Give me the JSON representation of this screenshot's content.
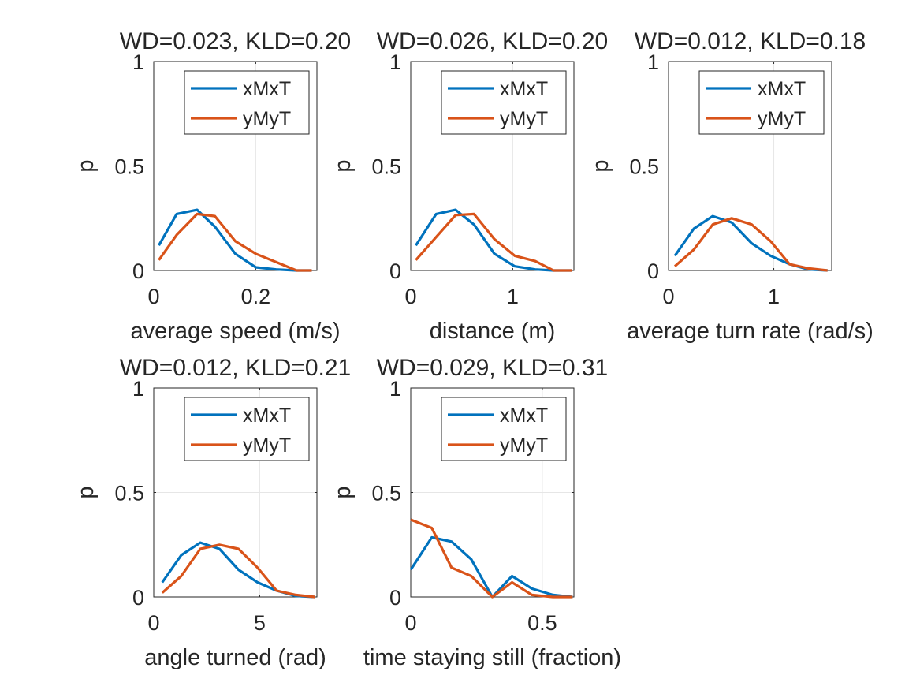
{
  "figure": {
    "background": "#ffffff",
    "series_colors": {
      "xMxT": "#0072BD",
      "yMyT": "#D95319"
    }
  },
  "chart_data": [
    {
      "type": "line",
      "title": "WD=0.023, KLD=0.20",
      "xlabel": "average speed (m/s)",
      "ylabel": "p",
      "xlim": [
        0,
        0.32
      ],
      "ylim": [
        0,
        1
      ],
      "xticks": [
        0,
        0.2
      ],
      "xtick_labels": [
        "0",
        "0.2"
      ],
      "yticks": [
        0,
        0.5,
        1
      ],
      "ytick_labels": [
        "0",
        "0.5",
        "1"
      ],
      "grid": true,
      "legend_position": "top-right",
      "series": [
        {
          "name": "xMxT",
          "color": "#0072BD",
          "x": [
            0.01,
            0.045,
            0.085,
            0.12,
            0.16,
            0.2,
            0.24,
            0.28,
            0.31
          ],
          "y": [
            0.12,
            0.27,
            0.29,
            0.21,
            0.08,
            0.015,
            0.005,
            0.0,
            0.0
          ]
        },
        {
          "name": "yMyT",
          "color": "#D95319",
          "x": [
            0.01,
            0.045,
            0.085,
            0.12,
            0.16,
            0.2,
            0.24,
            0.28,
            0.31
          ],
          "y": [
            0.05,
            0.17,
            0.27,
            0.26,
            0.14,
            0.08,
            0.04,
            0.0,
            0.0
          ]
        }
      ]
    },
    {
      "type": "line",
      "title": "WD=0.026, KLD=0.20",
      "xlabel": "distance (m)",
      "ylabel": "p",
      "xlim": [
        0,
        1.6
      ],
      "ylim": [
        0,
        1
      ],
      "xticks": [
        0,
        1
      ],
      "xtick_labels": [
        "0",
        "1"
      ],
      "yticks": [
        0,
        0.5,
        1
      ],
      "ytick_labels": [
        "0",
        "0.5",
        "1"
      ],
      "grid": true,
      "legend_position": "top-right",
      "series": [
        {
          "name": "xMxT",
          "color": "#0072BD",
          "x": [
            0.05,
            0.25,
            0.44,
            0.62,
            0.82,
            1.02,
            1.22,
            1.4,
            1.58
          ],
          "y": [
            0.12,
            0.27,
            0.29,
            0.22,
            0.08,
            0.02,
            0.005,
            0.0,
            0.0
          ]
        },
        {
          "name": "yMyT",
          "color": "#D95319",
          "x": [
            0.05,
            0.25,
            0.44,
            0.62,
            0.82,
            1.02,
            1.22,
            1.4,
            1.58
          ],
          "y": [
            0.05,
            0.16,
            0.265,
            0.27,
            0.15,
            0.07,
            0.045,
            0.0,
            0.0
          ]
        }
      ]
    },
    {
      "type": "line",
      "title": "WD=0.012, KLD=0.18",
      "xlabel": "average turn rate (rad/s)",
      "ylabel": "p",
      "xlim": [
        0,
        1.55
      ],
      "ylim": [
        0,
        1
      ],
      "xticks": [
        0,
        1
      ],
      "xtick_labels": [
        "0",
        "1"
      ],
      "yticks": [
        0,
        0.5,
        1
      ],
      "ytick_labels": [
        "0",
        "0.5",
        "1"
      ],
      "grid": true,
      "legend_position": "top-right",
      "series": [
        {
          "name": "xMxT",
          "color": "#0072BD",
          "x": [
            0.06,
            0.24,
            0.42,
            0.6,
            0.79,
            0.97,
            1.15,
            1.33,
            1.51
          ],
          "y": [
            0.07,
            0.2,
            0.26,
            0.23,
            0.13,
            0.07,
            0.03,
            0.005,
            0.0
          ]
        },
        {
          "name": "yMyT",
          "color": "#D95319",
          "x": [
            0.06,
            0.24,
            0.42,
            0.6,
            0.79,
            0.97,
            1.15,
            1.33,
            1.51
          ],
          "y": [
            0.02,
            0.1,
            0.22,
            0.25,
            0.22,
            0.14,
            0.03,
            0.01,
            0.0
          ]
        }
      ]
    },
    {
      "type": "line",
      "title": "WD=0.012, KLD=0.21",
      "xlabel": "angle turned (rad)",
      "ylabel": "p",
      "xlim": [
        0,
        7.7
      ],
      "ylim": [
        0,
        1
      ],
      "xticks": [
        0,
        5
      ],
      "xtick_labels": [
        "0",
        "5"
      ],
      "yticks": [
        0,
        0.5,
        1
      ],
      "ytick_labels": [
        "0",
        "0.5",
        "1"
      ],
      "grid": true,
      "legend_position": "top-right",
      "series": [
        {
          "name": "xMxT",
          "color": "#0072BD",
          "x": [
            0.4,
            1.3,
            2.2,
            3.1,
            4.0,
            4.9,
            5.8,
            6.7,
            7.6
          ],
          "y": [
            0.07,
            0.2,
            0.26,
            0.23,
            0.13,
            0.07,
            0.03,
            0.005,
            0.0
          ]
        },
        {
          "name": "yMyT",
          "color": "#D95319",
          "x": [
            0.4,
            1.3,
            2.2,
            3.1,
            4.0,
            4.9,
            5.8,
            6.7,
            7.6
          ],
          "y": [
            0.02,
            0.1,
            0.23,
            0.25,
            0.23,
            0.14,
            0.03,
            0.01,
            0.0
          ]
        }
      ]
    },
    {
      "type": "line",
      "title": "WD=0.029, KLD=0.31",
      "xlabel": "time staying still (fraction)",
      "ylabel": "p",
      "xlim": [
        0,
        0.62
      ],
      "ylim": [
        0,
        1
      ],
      "xticks": [
        0,
        0.5
      ],
      "xtick_labels": [
        "0",
        "0.5"
      ],
      "yticks": [
        0,
        0.5,
        1
      ],
      "ytick_labels": [
        "0",
        "0.5",
        "1"
      ],
      "grid": true,
      "legend_position": "top-right",
      "series": [
        {
          "name": "xMxT",
          "color": "#0072BD",
          "x": [
            0.0,
            0.08,
            0.155,
            0.23,
            0.31,
            0.385,
            0.46,
            0.54,
            0.615
          ],
          "y": [
            0.13,
            0.285,
            0.265,
            0.18,
            0.0,
            0.1,
            0.04,
            0.01,
            0.0
          ]
        },
        {
          "name": "yMyT",
          "color": "#D95319",
          "x": [
            0.0,
            0.08,
            0.155,
            0.23,
            0.31,
            0.385,
            0.46,
            0.54,
            0.615
          ],
          "y": [
            0.37,
            0.33,
            0.14,
            0.1,
            0.0,
            0.07,
            0.01,
            0.0,
            0.0
          ]
        }
      ]
    }
  ]
}
